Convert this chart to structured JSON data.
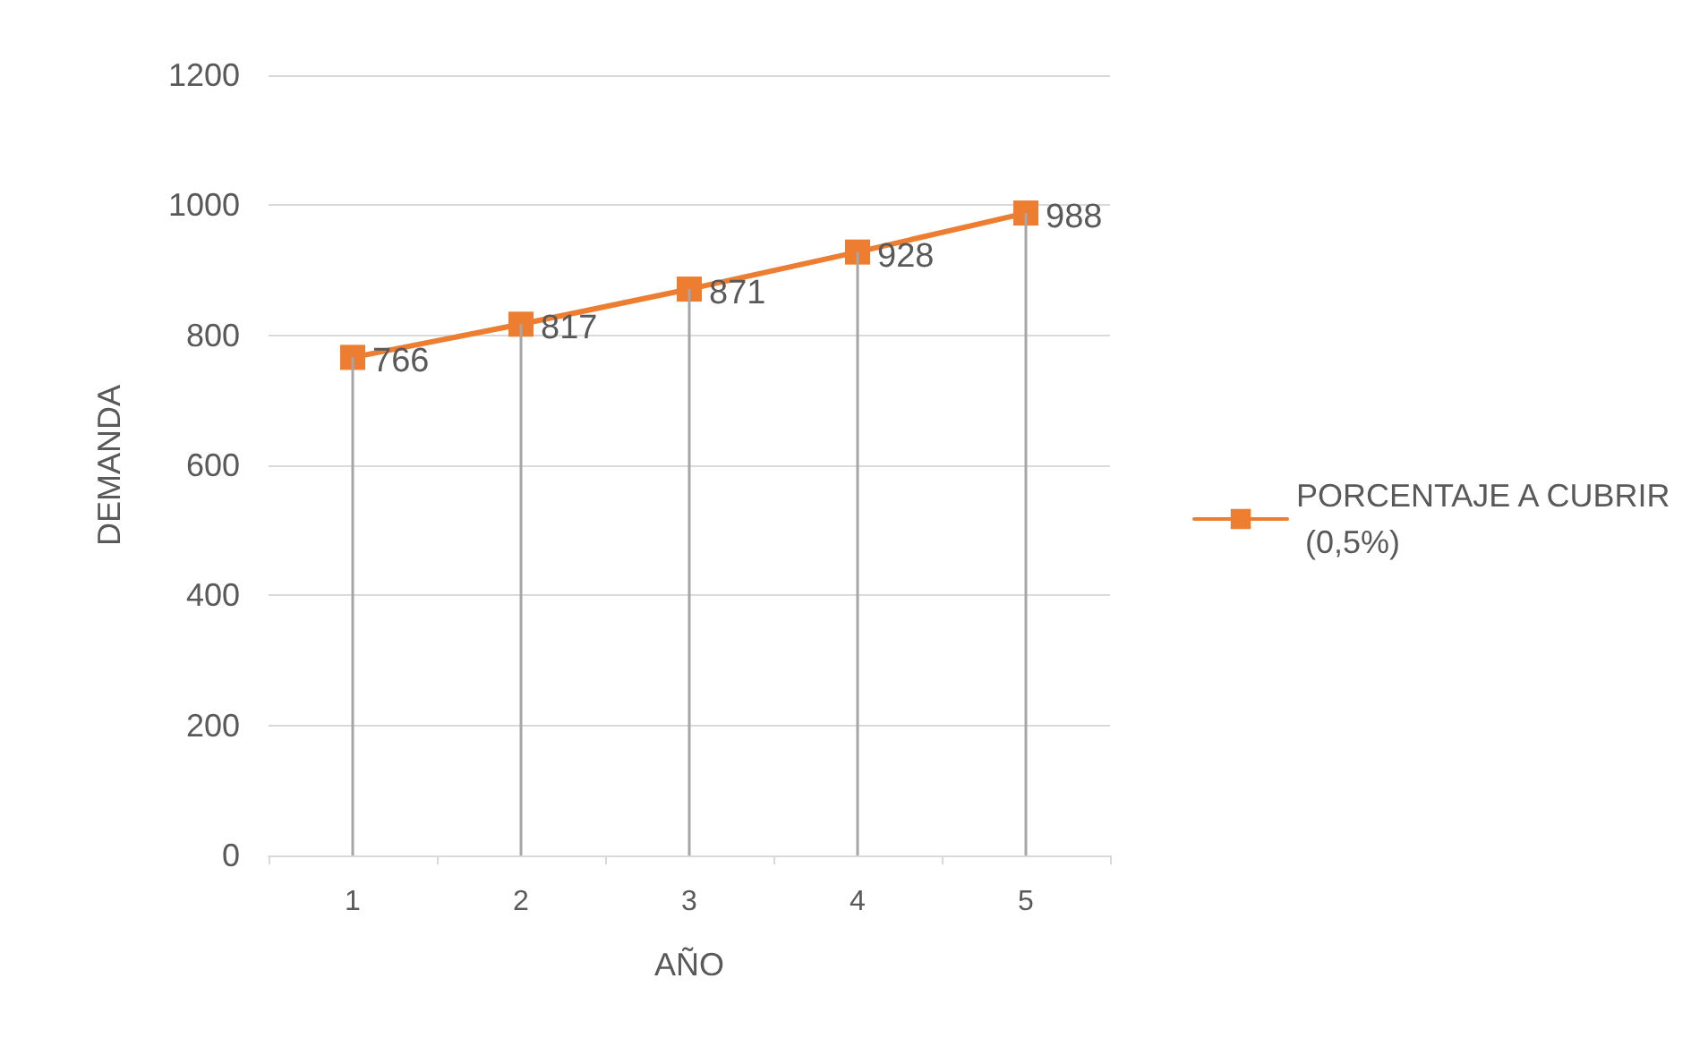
{
  "chart_data": {
    "type": "line",
    "xlabel": "AÑO",
    "ylabel": "DEMANDA",
    "categories": [
      "1",
      "2",
      "3",
      "4",
      "5"
    ],
    "series": [
      {
        "name": "PORCENTAJE A CUBRIR (0,5%)",
        "color": "#ed7d31",
        "values": [
          766,
          817,
          871,
          928,
          988
        ]
      }
    ],
    "ylim": [
      0,
      1200
    ],
    "yticks": [
      0,
      200,
      400,
      600,
      800,
      1000,
      1200
    ],
    "grid": true,
    "legend": "right",
    "marker": "square",
    "line_style": "solid",
    "data_labels": true
  }
}
